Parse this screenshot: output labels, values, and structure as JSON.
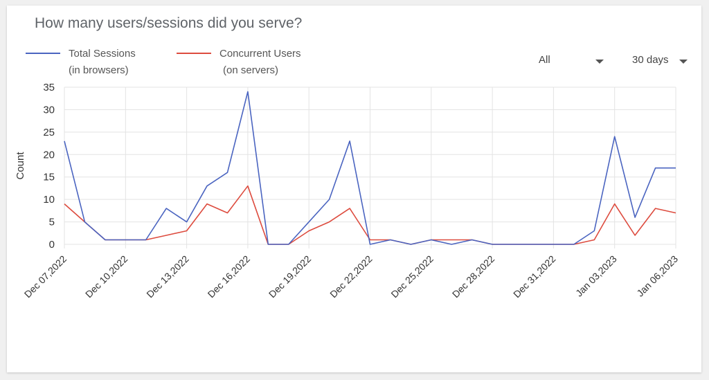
{
  "title": "How many users/sessions did you serve?",
  "legend": [
    {
      "name": "Total Sessions",
      "sub": "(in browsers)",
      "color": "#4a64c0"
    },
    {
      "name": "Concurrent Users",
      "sub": "(on servers)",
      "color": "#dd4b3e"
    }
  ],
  "filters": {
    "scope": {
      "selected": "All"
    },
    "range": {
      "selected": "30 days"
    }
  },
  "chart_data": {
    "type": "line",
    "ylabel": "Count",
    "xlabel": "",
    "ylim": [
      0,
      35
    ],
    "yticks": [
      0,
      5,
      10,
      15,
      20,
      25,
      30,
      35
    ],
    "grid": true,
    "x": [
      "Dec 07,2022",
      "Dec 08,2022",
      "Dec 09,2022",
      "Dec 10,2022",
      "Dec 11,2022",
      "Dec 12,2022",
      "Dec 13,2022",
      "Dec 14,2022",
      "Dec 15,2022",
      "Dec 16,2022",
      "Dec 17,2022",
      "Dec 18,2022",
      "Dec 19,2022",
      "Dec 20,2022",
      "Dec 21,2022",
      "Dec 22,2022",
      "Dec 23,2022",
      "Dec 24,2022",
      "Dec 25,2022",
      "Dec 26,2022",
      "Dec 27,2022",
      "Dec 28,2022",
      "Dec 29,2022",
      "Dec 30,2022",
      "Dec 31,2022",
      "Jan 01,2023",
      "Jan 02,2023",
      "Jan 03,2023",
      "Jan 04,2023",
      "Jan 05,2023",
      "Jan 06,2023"
    ],
    "xtick_labels": [
      "Dec 07,2022",
      "Dec 10,2022",
      "Dec 13,2022",
      "Dec 16,2022",
      "Dec 19,2022",
      "Dec 22,2022",
      "Dec 25,2022",
      "Dec 28,2022",
      "Dec 31,2022",
      "Jan 03,2023",
      "Jan 06,2023"
    ],
    "series": [
      {
        "name": "Total Sessions",
        "color": "#4a64c0",
        "values": [
          23,
          5,
          1,
          1,
          1,
          8,
          5,
          13,
          16,
          34,
          0,
          0,
          5,
          10,
          23,
          0,
          1,
          0,
          1,
          0,
          1,
          0,
          0,
          0,
          0,
          0,
          3,
          24,
          6,
          17,
          17
        ]
      },
      {
        "name": "Concurrent Users",
        "color": "#dd4b3e",
        "values": [
          9,
          5,
          1,
          1,
          1,
          2,
          3,
          9,
          7,
          13,
          0,
          0,
          3,
          5,
          8,
          1,
          1,
          0,
          1,
          1,
          1,
          0,
          0,
          0,
          0,
          0,
          1,
          9,
          2,
          8,
          7
        ]
      }
    ]
  }
}
